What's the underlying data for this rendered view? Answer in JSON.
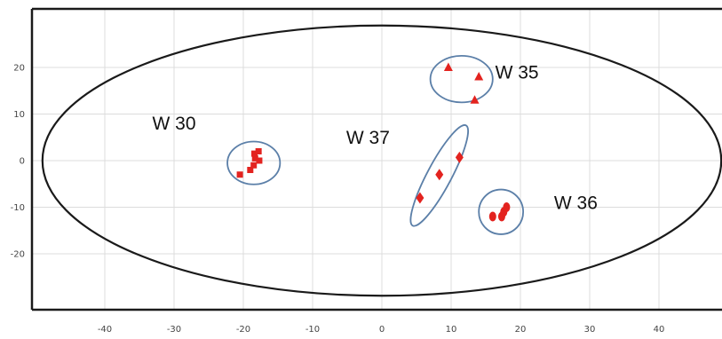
{
  "chart_data": {
    "type": "scatter",
    "title": "",
    "xlabel": "",
    "ylabel": "",
    "xlim": [
      -50,
      50
    ],
    "ylim": [
      -32,
      32
    ],
    "x_ticks": [
      -40,
      -30,
      -20,
      -10,
      0,
      10,
      20,
      30,
      40
    ],
    "y_ticks": [
      20,
      10,
      0,
      -10,
      -20
    ],
    "grid": true,
    "colors": {
      "points": "#e3231f",
      "clusters": "#5b7fa8",
      "ellipse": "#1a1a1a",
      "grid": "#dcdcdc"
    },
    "confidence_ellipse": {
      "cx": 0,
      "cy": 0,
      "rx": 49,
      "ry": 29
    },
    "series": [
      {
        "label": "W 30",
        "marker": "square",
        "label_pos": [
          -30,
          8
        ],
        "points": [
          [
            -20.5,
            -3
          ],
          [
            -19,
            -2
          ],
          [
            -18.5,
            -1
          ],
          [
            -18.3,
            0.5
          ],
          [
            -17.7,
            0
          ],
          [
            -18.4,
            1.5
          ],
          [
            -17.8,
            2
          ]
        ],
        "cluster": {
          "cx": -18.5,
          "cy": -0.5,
          "rx": 3.8,
          "ry": 4.6,
          "angle": 0
        }
      },
      {
        "label": "W 35",
        "marker": "triangle",
        "label_pos": [
          19.5,
          19
        ],
        "points": [
          [
            9.6,
            20
          ],
          [
            14,
            18
          ],
          [
            13.4,
            13
          ]
        ],
        "cluster": {
          "cx": 11.5,
          "cy": 17.5,
          "rx": 4.5,
          "ry": 5,
          "angle": 0
        }
      },
      {
        "label": "W 36",
        "marker": "circle",
        "label_pos": [
          28,
          -9
        ],
        "points": [
          [
            16,
            -12
          ],
          [
            17.3,
            -12
          ],
          [
            17.6,
            -11
          ],
          [
            18,
            -10
          ]
        ],
        "cluster": {
          "cx": 17.2,
          "cy": -11,
          "rx": 3.2,
          "ry": 4.8,
          "angle": 0
        }
      },
      {
        "label": "W 37",
        "marker": "diamond",
        "label_pos": [
          -2,
          5
        ],
        "points": [
          [
            5.5,
            -8
          ],
          [
            8.3,
            -3
          ],
          [
            11.2,
            0.7
          ]
        ],
        "cluster": {
          "cx": 8.3,
          "cy": -3.2,
          "rx": 8.2,
          "ry": 2.6,
          "angle": -62
        }
      }
    ]
  }
}
